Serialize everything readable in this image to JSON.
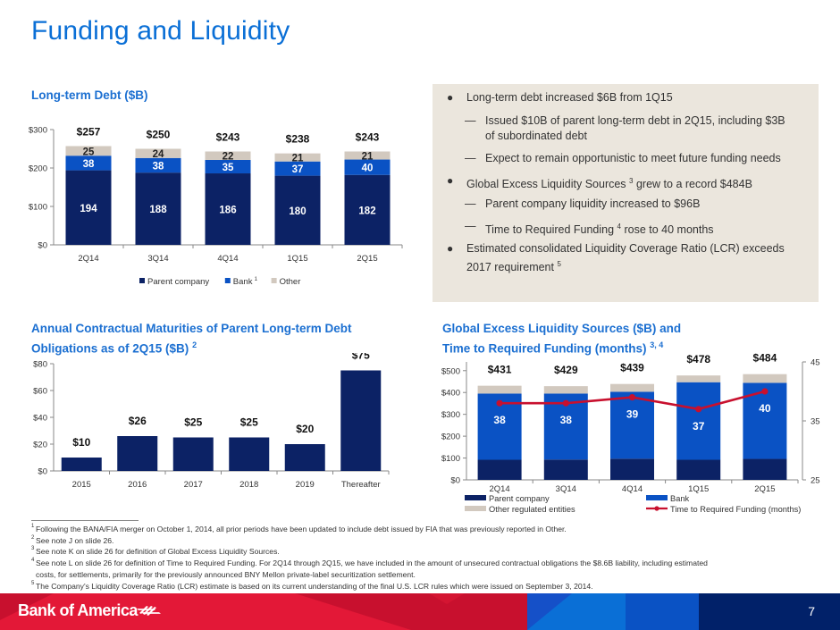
{
  "page": {
    "title": "Funding and Liquidity",
    "page_number": "7",
    "brand": "Bank of America",
    "colors": {
      "title_blue": "#0a6fd6",
      "parent_company": "#0c2265",
      "bank": "#0a52c4",
      "other": "#d2c9bf",
      "line_red": "#c8102e",
      "panel_bg": "#ebe6dd",
      "footer_red": "#e31837",
      "footer_navy": "#012169"
    }
  },
  "sections": {
    "long_term_debt_title": "Long-term Debt ($B)",
    "maturities_title_line1": "Annual Contractual Maturities of Parent Long-term Debt",
    "maturities_title_line2": "Obligations as of 2Q15 ($B)",
    "maturities_title_sup": "2",
    "liquidity_title_line1": "Global Excess Liquidity Sources ($B) and",
    "liquidity_title_line2": "Time to Required Funding (months)",
    "liquidity_title_sup": "3, 4"
  },
  "bullets": [
    {
      "level": 1,
      "text": "Long-term debt increased $6B from 1Q15"
    },
    {
      "level": 2,
      "text": "Issued $10B of parent long-term debt in 2Q15, including $3B",
      "text2": "of subordinated debt"
    },
    {
      "level": 2,
      "text": "Expect to remain opportunistic to meet future funding needs"
    },
    {
      "level": 1,
      "text": "Global Excess Liquidity Sources",
      "sup": "3",
      "text_after": "grew to a record $484B"
    },
    {
      "level": 2,
      "text": "Parent company liquidity increased to $96B"
    },
    {
      "level": 2,
      "text": "Time to Required Funding",
      "sup": "4",
      "text_after": "rose to 40 months"
    },
    {
      "level": 1,
      "text": "Estimated consolidated Liquidity Coverage Ratio (LCR) exceeds",
      "text2": "2017 requirement",
      "sup": "5"
    }
  ],
  "footnotes": [
    {
      "num": "1",
      "text": "Following the BANA/FIA merger on October 1, 2014, all prior periods have been updated to include debt issued by FIA that was previously reported in Other."
    },
    {
      "num": "2",
      "text": "See note J on slide 26."
    },
    {
      "num": "3",
      "text": "See note K on slide 26 for definition of Global Excess Liquidity Sources."
    },
    {
      "num": "4",
      "text": "See note L on slide 26 for definition of Time to Required Funding. For 2Q14 through 2Q15, we have included in the amount of unsecured contractual obligations the $8.6B liability, including estimated",
      "text2": "costs, for settlements, primarily for the previously announced BNY Mellon private-label securitization settlement."
    },
    {
      "num": "5",
      "text": "The Company's Liquidity Coverage Ratio (LCR) estimate is based on its current understanding of the final U.S. LCR rules which were issued on September 3, 2014."
    }
  ],
  "chart_data": [
    {
      "id": "long_term_debt",
      "type": "bar",
      "stacked": true,
      "title": "Long-term Debt ($B)",
      "categories": [
        "2Q14",
        "3Q14",
        "4Q14",
        "1Q15",
        "2Q15"
      ],
      "series": [
        {
          "name": "Parent company",
          "values": [
            194,
            188,
            186,
            180,
            182
          ]
        },
        {
          "name": "Bank",
          "sup": "1",
          "values": [
            38,
            38,
            35,
            37,
            40
          ]
        },
        {
          "name": "Other",
          "values": [
            25,
            24,
            22,
            21,
            21
          ]
        }
      ],
      "totals": [
        "$257",
        "$250",
        "$243",
        "$238",
        "$243"
      ],
      "yticks": [
        "$0",
        "$100",
        "$200",
        "$300"
      ],
      "ylim": [
        0,
        300
      ],
      "legend": "bottom"
    },
    {
      "id": "maturities",
      "type": "bar",
      "title": "Annual Contractual Maturities of Parent Long-term Debt Obligations as of 2Q15 ($B)",
      "categories": [
        "2015",
        "2016",
        "2017",
        "2018",
        "2019",
        "Thereafter"
      ],
      "values": [
        10,
        26,
        25,
        25,
        20,
        75
      ],
      "labels": [
        "$10",
        "$26",
        "$25",
        "$25",
        "$20",
        "$75"
      ],
      "yticks": [
        "$0",
        "$20",
        "$40",
        "$60",
        "$80"
      ],
      "ylim": [
        0,
        80
      ]
    },
    {
      "id": "liquidity",
      "type": "bar",
      "stacked": true,
      "title": "Global Excess Liquidity Sources ($B) and Time to Required Funding (months)",
      "categories": [
        "2Q14",
        "3Q14",
        "4Q14",
        "1Q15",
        "2Q15"
      ],
      "series": [
        {
          "name": "Parent company",
          "values": [
            92,
            93,
            97,
            92,
            96
          ]
        },
        {
          "name": "Bank",
          "values": [
            303,
            302,
            306,
            355,
            348
          ]
        },
        {
          "name": "Other regulated entities",
          "values": [
            36,
            34,
            36,
            31,
            40
          ]
        }
      ],
      "totals": [
        "$431",
        "$429",
        "$439",
        "$478",
        "$484"
      ],
      "line": {
        "name": "Time to Required Funding (months)",
        "values": [
          38,
          38,
          39,
          37,
          40
        ],
        "axis": "right"
      },
      "yticks": [
        "$0",
        "$100",
        "$200",
        "$300",
        "$400",
        "$500"
      ],
      "ylim": [
        0,
        540
      ],
      "y2ticks": [
        "25",
        "35",
        "45"
      ],
      "y2lim": [
        25,
        45
      ],
      "legend": "bottom"
    }
  ]
}
